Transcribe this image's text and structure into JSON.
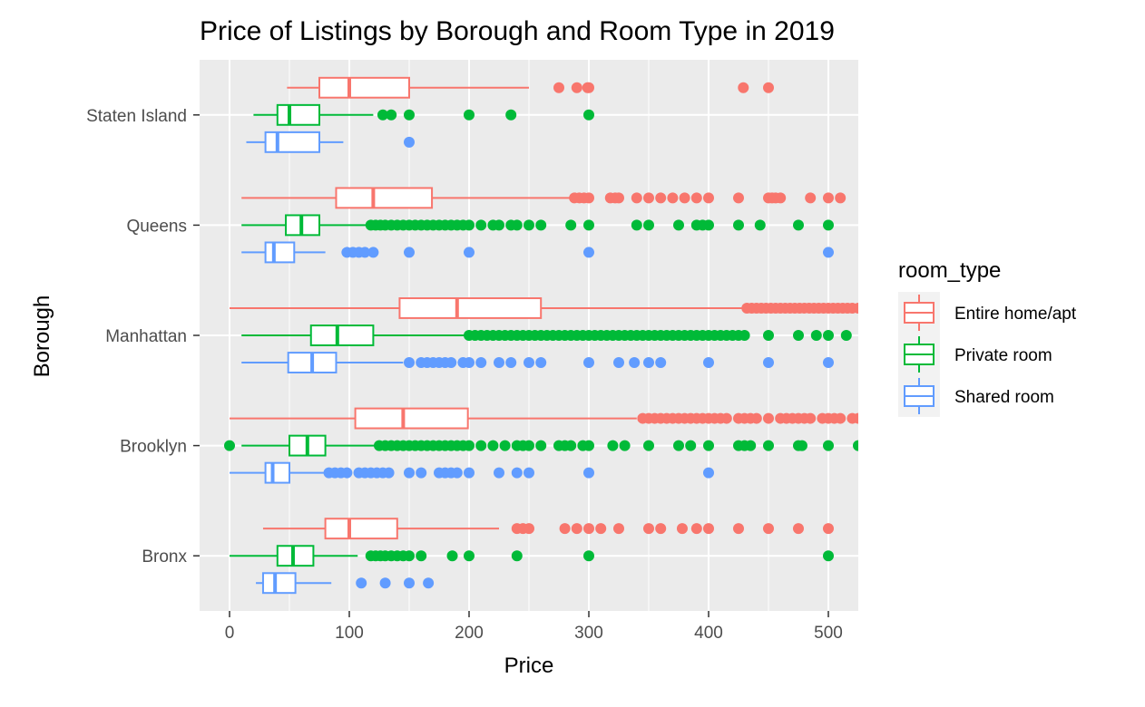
{
  "chart_data": {
    "type": "boxplot",
    "title": "Price of Listings by Borough and Room Type in 2019",
    "xlabel": "Price",
    "ylabel": "Borough",
    "xlim": [
      -25,
      525
    ],
    "x_ticks": [
      0,
      100,
      200,
      300,
      400,
      500
    ],
    "categories": [
      "Bronx",
      "Brooklyn",
      "Manhattan",
      "Queens",
      "Staten Island"
    ],
    "legend": {
      "title": "room_type",
      "placement": "right",
      "entries": [
        {
          "label": "Entire home/apt",
          "color": "#F8766D"
        },
        {
          "label": "Private room",
          "color": "#00BA38"
        },
        {
          "label": "Shared room",
          "color": "#619CFF"
        }
      ]
    },
    "grid": true,
    "series": [
      {
        "name": "Entire home/apt",
        "color": "#F8766D",
        "boxes": [
          {
            "category": "Bronx",
            "whisker_low": 28,
            "q1": 80,
            "median": 100,
            "q3": 140,
            "whisker_high": 225,
            "outliers": [
              240,
              245,
              250,
              280,
              290,
              300,
              310,
              325,
              350,
              360,
              378,
              390,
              400,
              425,
              450,
              475,
              500
            ]
          },
          {
            "category": "Brooklyn",
            "whisker_low": 0,
            "q1": 105,
            "median": 145,
            "q3": 199,
            "whisker_high": 340,
            "outliers": [
              345,
              350,
              355,
              360,
              365,
              370,
              375,
              380,
              385,
              390,
              395,
              400,
              405,
              410,
              415,
              425,
              430,
              435,
              440,
              450,
              460,
              465,
              470,
              475,
              480,
              485,
              495,
              500,
              505,
              510,
              520,
              525
            ]
          },
          {
            "category": "Manhattan",
            "whisker_low": 0,
            "q1": 142,
            "median": 190,
            "q3": 260,
            "whisker_high": 430,
            "outliers": [
              432,
              436,
              440,
              444,
              448,
              452,
              456,
              460,
              464,
              468,
              472,
              476,
              480,
              484,
              488,
              492,
              496,
              500,
              504,
              508,
              512,
              516,
              520,
              525
            ]
          },
          {
            "category": "Queens",
            "whisker_low": 10,
            "q1": 89,
            "median": 120,
            "q3": 169,
            "whisker_high": 285,
            "outliers": [
              288,
              292,
              296,
              300,
              318,
              322,
              325,
              340,
              350,
              360,
              370,
              380,
              390,
              400,
              425,
              450,
              453,
              456,
              460,
              485,
              500,
              510
            ]
          },
          {
            "category": "Staten Island",
            "whisker_low": 48,
            "q1": 75,
            "median": 100,
            "q3": 150,
            "whisker_high": 250,
            "outliers": [
              275,
              290,
              299,
              300,
              429,
              450
            ]
          }
        ]
      },
      {
        "name": "Private room",
        "color": "#00BA38",
        "boxes": [
          {
            "category": "Bronx",
            "whisker_low": 0,
            "q1": 40,
            "median": 53,
            "q3": 70,
            "whisker_high": 107,
            "outliers": [
              118,
              122,
              126,
              130,
              135,
              140,
              145,
              150,
              160,
              186,
              200,
              240,
              300,
              500
            ]
          },
          {
            "category": "Brooklyn",
            "whisker_low": 10,
            "q1": 50,
            "median": 65,
            "q3": 80,
            "whisker_high": 122,
            "outliers": [
              0,
              125,
              130,
              135,
              140,
              145,
              150,
              155,
              160,
              165,
              170,
              175,
              180,
              185,
              190,
              195,
              200,
              210,
              220,
              230,
              240,
              245,
              250,
              260,
              275,
              280,
              285,
              295,
              300,
              320,
              330,
              350,
              375,
              385,
              400,
              425,
              430,
              435,
              450,
              475,
              478,
              500,
              525
            ]
          },
          {
            "category": "Manhattan",
            "whisker_low": 10,
            "q1": 68,
            "median": 90,
            "q3": 120,
            "whisker_high": 198,
            "outliers": [
              200,
              205,
              210,
              215,
              220,
              225,
              230,
              235,
              240,
              245,
              250,
              255,
              260,
              265,
              270,
              275,
              280,
              285,
              290,
              295,
              300,
              305,
              310,
              315,
              320,
              325,
              330,
              335,
              340,
              345,
              350,
              355,
              360,
              365,
              370,
              375,
              380,
              385,
              390,
              395,
              400,
              405,
              410,
              415,
              420,
              425,
              430,
              450,
              475,
              490,
              500,
              515
            ]
          },
          {
            "category": "Queens",
            "whisker_low": 10,
            "q1": 47,
            "median": 60,
            "q3": 75,
            "whisker_high": 115,
            "outliers": [
              118,
              122,
              126,
              130,
              135,
              140,
              145,
              150,
              155,
              160,
              165,
              170,
              175,
              180,
              185,
              190,
              195,
              200,
              210,
              220,
              225,
              235,
              240,
              250,
              260,
              285,
              300,
              340,
              350,
              375,
              390,
              395,
              400,
              425,
              443,
              475,
              500
            ]
          },
          {
            "category": "Staten Island",
            "whisker_low": 20,
            "q1": 40,
            "median": 50,
            "q3": 75,
            "whisker_high": 120,
            "outliers": [
              128,
              135,
              150,
              200,
              235,
              300
            ]
          }
        ]
      },
      {
        "name": "Shared room",
        "color": "#619CFF",
        "boxes": [
          {
            "category": "Bronx",
            "whisker_low": 22,
            "q1": 28,
            "median": 38,
            "q3": 55,
            "whisker_high": 85,
            "outliers": [
              110,
              130,
              150,
              166
            ]
          },
          {
            "category": "Brooklyn",
            "whisker_low": 0,
            "q1": 30,
            "median": 36,
            "q3": 50,
            "whisker_high": 80,
            "outliers": [
              83,
              88,
              93,
              98,
              108,
              113,
              118,
              123,
              128,
              133,
              150,
              160,
              175,
              180,
              185,
              190,
              200,
              225,
              240,
              250,
              300,
              400
            ]
          },
          {
            "category": "Manhattan",
            "whisker_low": 10,
            "q1": 49,
            "median": 69,
            "q3": 89,
            "whisker_high": 145,
            "outliers": [
              150,
              160,
              165,
              170,
              175,
              180,
              185,
              195,
              200,
              210,
              225,
              235,
              250,
              260,
              300,
              325,
              338,
              350,
              360,
              400,
              450,
              500
            ]
          },
          {
            "category": "Queens",
            "whisker_low": 10,
            "q1": 30,
            "median": 37,
            "q3": 54,
            "whisker_high": 80,
            "outliers": [
              98,
              103,
              108,
              113,
              120,
              150,
              200,
              300,
              500
            ]
          },
          {
            "category": "Staten Island",
            "whisker_low": 14,
            "q1": 30,
            "median": 40,
            "q3": 75,
            "whisker_high": 95,
            "outliers": [
              150
            ]
          }
        ]
      }
    ]
  }
}
